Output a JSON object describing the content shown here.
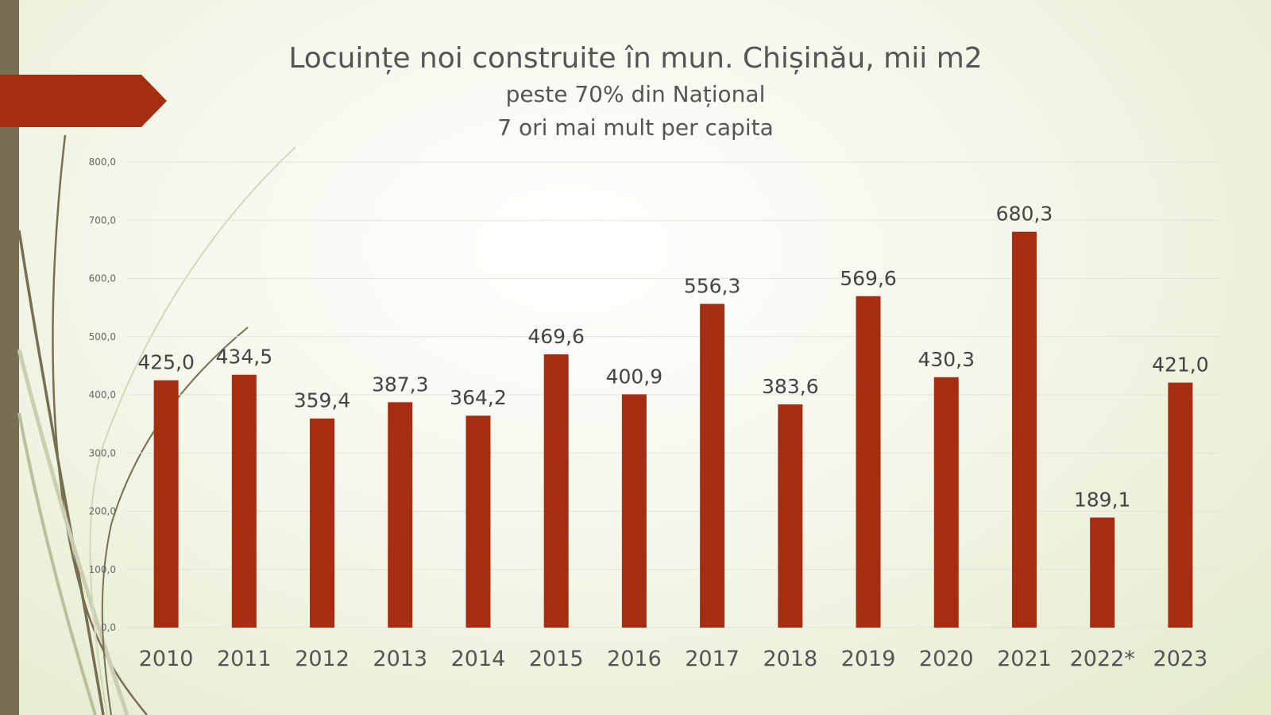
{
  "slide": {
    "title": "Locuințe noi construite în mun. Chișinău, mii m2",
    "subtitle_1": "peste 70% din Național",
    "subtitle_2": "7 ori mai mult per capita"
  },
  "colors": {
    "bar": "#a52e12",
    "accent_tab": "#a52e12",
    "side_bar": "#786f53",
    "text": "#555555",
    "grid": "#e4e4dc"
  },
  "chart_data": {
    "type": "bar",
    "title": "Locuințe noi construite în mun. Chișinău, mii m2",
    "categories": [
      "2010",
      "2011",
      "2012",
      "2013",
      "2014",
      "2015",
      "2016",
      "2017",
      "2018",
      "2019",
      "2020",
      "2021",
      "2022*",
      "2023"
    ],
    "values": [
      425.0,
      434.5,
      359.4,
      387.3,
      364.2,
      469.6,
      400.9,
      556.3,
      383.6,
      569.6,
      430.3,
      680.3,
      189.1,
      421.0
    ],
    "data_labels": [
      "425,0",
      "434,5",
      "359,4",
      "387,3",
      "364,2",
      "469,6",
      "400,9",
      "556,3",
      "383,6",
      "569,6",
      "430,3",
      "680,3",
      "189,1",
      "421,0"
    ],
    "ylim": [
      0,
      800
    ],
    "yticks": [
      0,
      100,
      200,
      300,
      400,
      500,
      600,
      700,
      800
    ],
    "ytick_labels": [
      "0,0",
      "100,0",
      "200,0",
      "300,0",
      "400,0",
      "500,0",
      "600,0",
      "700,0",
      "800,0"
    ],
    "grid": true,
    "legend": "none",
    "xlabel": "",
    "ylabel": ""
  }
}
